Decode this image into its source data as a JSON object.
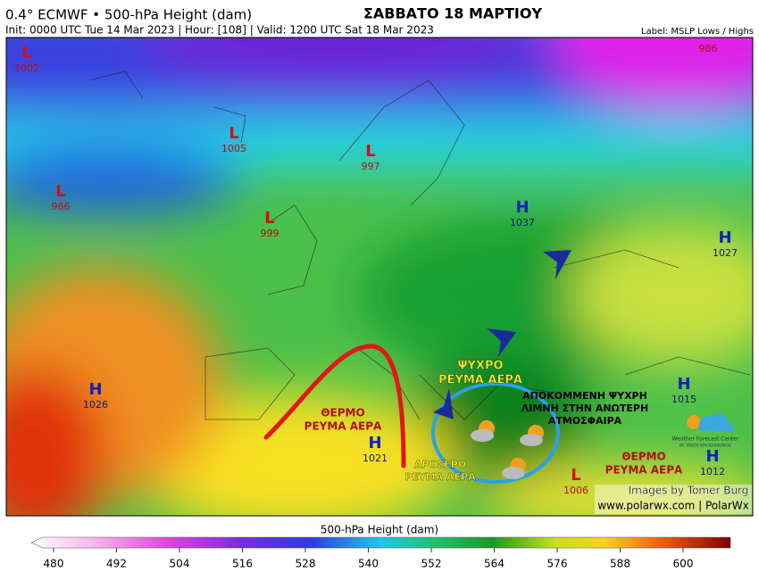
{
  "header": {
    "title": "0.4° ECMWF • 500-hPa Height (dam)",
    "headline": "ΣΑΒΒΑΤΟ 18 ΜΑΡΤΙΟΥ",
    "subtitle": "Init: 0000 UTC Tue 14 Mar 2023 | Hour: [108] | Valid: 1200 UTC Sat 18 Mar 2023",
    "note": "Label: MSLP Lows / Highs"
  },
  "systems": [
    {
      "kind": "L",
      "value": 1002
    },
    {
      "kind": "L",
      "value": 1005
    },
    {
      "kind": "L",
      "value": 997
    },
    {
      "kind": "L",
      "value": 986
    },
    {
      "kind": "L",
      "value": 999
    },
    {
      "kind": "H",
      "value": 1037
    },
    {
      "kind": "H",
      "value": 1027
    },
    {
      "kind": "H",
      "value": 1026
    },
    {
      "kind": "H",
      "value": 1021
    },
    {
      "kind": "H",
      "value": 1015
    },
    {
      "kind": "H",
      "value": 1012
    },
    {
      "kind": "L",
      "value": 1006
    }
  ],
  "corner_value": 986,
  "annotations": [
    {
      "lines": [
        "ΘΕΡΜΟ",
        "ΡΕΥΜΑ ΑΕΡΑ"
      ]
    },
    {
      "lines": [
        "ΨΥΧΡΟ",
        "ΡΕΥΜΑ ΑΕΡΑ"
      ]
    },
    {
      "lines": [
        "ΑΠΟΚΟΜΜΕΝΗ ΨΥΧΡΗ",
        "ΛΙΜΝΗ ΣΤΗΝ ΑΝΩΤΕΡΗ",
        "ΑΤΜΟΣΦΑΙΡΑ"
      ]
    },
    {
      "lines": [
        "ΔΡΟΣΕΡΟ",
        "ΡΕΥΜΑ ΑΕΡΑ"
      ]
    },
    {
      "lines": [
        "ΘΕΡΜΟ",
        "ΡΕΥΜΑ ΑΕΡΑ"
      ]
    }
  ],
  "logo": {
    "name": "Weather Forecast Center",
    "by": "BY TASOS IERODIAKONOU"
  },
  "credits": [
    "Images by Tomer Burg",
    "www.polarwx.com | PolarWx"
  ],
  "colorbar": {
    "title": "500-hPa Height (dam)",
    "lim": [
      480,
      600
    ],
    "ticks": [
      480,
      492,
      504,
      516,
      528,
      540,
      552,
      564,
      576,
      588,
      600
    ]
  }
}
